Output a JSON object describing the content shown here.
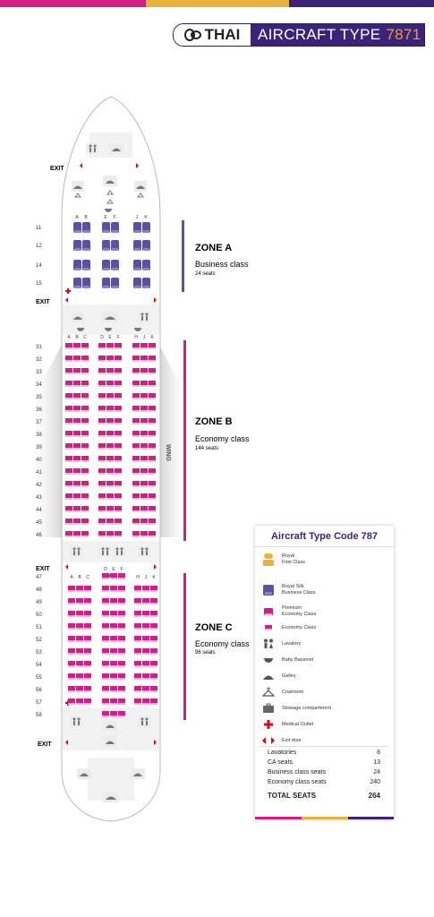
{
  "brand": {
    "name": "THAI",
    "title": "AIRCRAFT TYPE",
    "code": "7871"
  },
  "colors": {
    "purple": "#3b2478",
    "magenta": "#d31d87",
    "gold": "#e8b33a",
    "business": "#5a52a0",
    "premium": "#d31d87",
    "economy_seat": "#d31d87",
    "exit_red": "#e30613",
    "zone_a_bar": "#5a52a0",
    "zone_bc_bar": "#d31d87"
  },
  "exits": {
    "exit_1": "EXIT",
    "exit_2": "EXIT",
    "exit_3": "EXIT",
    "exit_4": "EXIT"
  },
  "business": {
    "columns": [
      "A",
      "B",
      "E",
      "F",
      "J",
      "K"
    ],
    "rows": [
      "11",
      "12",
      "14",
      "15"
    ]
  },
  "economy_b": {
    "columns": [
      "A",
      "B",
      "C",
      "D",
      "E",
      "F",
      "H",
      "J",
      "K"
    ],
    "rows": [
      "31",
      "32",
      "33",
      "34",
      "35",
      "36",
      "37",
      "38",
      "39",
      "40",
      "41",
      "42",
      "43",
      "44",
      "45",
      "46"
    ]
  },
  "economy_c": {
    "columns_left": [
      "A",
      "B",
      "C"
    ],
    "columns_mid": [
      "D",
      "E",
      "F"
    ],
    "columns_right": [
      "H",
      "J",
      "K"
    ],
    "rows": [
      "47",
      "48",
      "49",
      "50",
      "51",
      "52",
      "53",
      "54",
      "55",
      "56",
      "57",
      "58"
    ]
  },
  "wing_label": "WING",
  "zones": [
    {
      "title": "ZONE A",
      "class": "Business class",
      "seats": "24 seats"
    },
    {
      "title": "ZONE B",
      "class": "Economy class",
      "seats": "144 seats"
    },
    {
      "title": "ZONE C",
      "class": "Economy class",
      "seats": "96 seats"
    }
  ],
  "legend": {
    "title": "Aircraft Type Code 787",
    "items": [
      {
        "icon": "royal-first-seat-icon",
        "label": "Royal\nFirst Class"
      },
      {
        "icon": "royal-silk-seat-icon",
        "label": "Royal Silk\nBusiness Class"
      },
      {
        "icon": "premium-economy-seat-icon",
        "label": "Premium\nEconomy Class"
      },
      {
        "icon": "economy-seat-icon",
        "label": "Economy Class"
      },
      {
        "icon": "lavatory-icon",
        "label": "Lavatory"
      },
      {
        "icon": "baby-bassinet-icon",
        "label": "Baby Bassinet"
      },
      {
        "icon": "galley-icon",
        "label": "Galley"
      },
      {
        "icon": "coatroom-icon",
        "label": "Coatroom"
      },
      {
        "icon": "stowage-icon",
        "label": "Stowage compartment"
      },
      {
        "icon": "medical-outlet-icon",
        "label": "Medical Outlet"
      },
      {
        "icon": "exit-door-icon",
        "label": "Exit door"
      }
    ],
    "stats": [
      {
        "label": "Lavatories",
        "value": "8"
      },
      {
        "label": "CA seats",
        "value": "13"
      },
      {
        "label": "Business class seats",
        "value": "24"
      },
      {
        "label": "Economy class seats",
        "value": "240"
      }
    ],
    "total": {
      "label": "TOTAL SEATS",
      "value": "264"
    }
  }
}
